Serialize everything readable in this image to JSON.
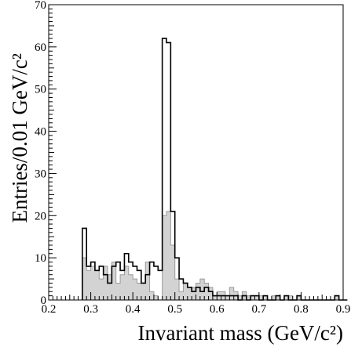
{
  "chart_data": {
    "type": "histogram",
    "xlabel": "Invariant mass (GeV/c²)",
    "ylabel": "Entries/0.01 GeV/c²",
    "xlim": [
      0.2,
      0.9
    ],
    "ylim": [
      0,
      70
    ],
    "xticks": [
      "0.2",
      "0.3",
      "0.4",
      "0.5",
      "0.6",
      "0.7",
      "0.8",
      "0.9"
    ],
    "yticks": [
      "0",
      "10",
      "20",
      "30",
      "40",
      "50",
      "60",
      "70"
    ],
    "bin_width": 0.01,
    "bin_start": 0.28,
    "grid": false,
    "series": [
      {
        "style": "filled-gray",
        "values": [
          10,
          7,
          8,
          7,
          5,
          8,
          6,
          9,
          4,
          6,
          8,
          6,
          5,
          4,
          4,
          9,
          2,
          1,
          0,
          20,
          21,
          13,
          5,
          2,
          4,
          3,
          3,
          4,
          5,
          4,
          3,
          1,
          2,
          2,
          1,
          3,
          2,
          1,
          2,
          1,
          1,
          1,
          1,
          1,
          0,
          1,
          1,
          0,
          1,
          1,
          0,
          1,
          0,
          0,
          0,
          0,
          0,
          0,
          0,
          0,
          1,
          0,
          0
        ]
      },
      {
        "style": "open-black",
        "values": [
          17,
          8,
          9,
          7,
          8,
          6,
          4,
          8,
          9,
          7,
          11,
          9,
          8,
          7,
          4,
          6,
          9,
          8,
          7,
          62,
          61,
          21,
          10,
          5,
          4,
          3,
          2,
          3,
          2,
          3,
          2,
          1,
          1,
          1,
          1,
          1,
          1,
          0,
          1,
          0,
          1,
          1,
          0,
          1,
          0,
          0,
          1,
          0,
          1,
          0,
          0,
          1,
          0,
          0,
          0,
          0,
          0,
          0,
          0,
          0,
          1,
          0,
          0
        ]
      }
    ]
  }
}
